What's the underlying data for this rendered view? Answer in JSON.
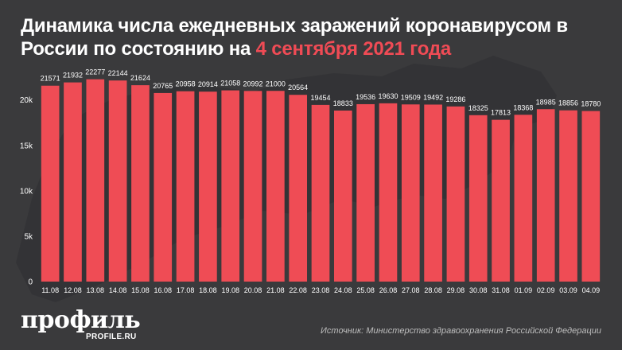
{
  "header": {
    "title_part1": "Динамика числа ежедневных заражений коронавирусом в России по состоянию на ",
    "title_accent": "4 сентября 2021 года"
  },
  "footer": {
    "logo": "профиль",
    "logo_sub": "PROFILE.RU",
    "source": "Источник: Министерство здравоохранения Российской Федерации"
  },
  "colors": {
    "background": "#3a3a3c",
    "bar": "#ef4c55",
    "accent": "#f04b55",
    "text": "#ffffff"
  },
  "chart_data": {
    "type": "bar",
    "title": "Динамика числа ежедневных заражений коронавирусом в России по состоянию на 4 сентября 2021 года",
    "xlabel": "",
    "ylabel": "",
    "ylim": [
      0,
      24000
    ],
    "yticks": [
      0,
      5000,
      10000,
      15000,
      20000
    ],
    "ytick_labels": [
      "0",
      "5k",
      "10k",
      "15k",
      "20k"
    ],
    "grid": false,
    "categories": [
      "11.08",
      "12.08",
      "13.08",
      "14.08",
      "15.08",
      "16.08",
      "17.08",
      "18.08",
      "19.08",
      "20.08",
      "21.08",
      "22.08",
      "23.08",
      "24.08",
      "25.08",
      "26.08",
      "27.08",
      "28.08",
      "29.08",
      "30.08",
      "31.08",
      "01.09",
      "02.09",
      "03.09",
      "04.09"
    ],
    "values": [
      21571,
      21932,
      22277,
      22144,
      21624,
      20765,
      20958,
      20914,
      21058,
      20992,
      21000,
      20564,
      19454,
      18833,
      19536,
      19630,
      19509,
      19492,
      19286,
      18325,
      17813,
      18368,
      18985,
      18856,
      18780
    ]
  }
}
